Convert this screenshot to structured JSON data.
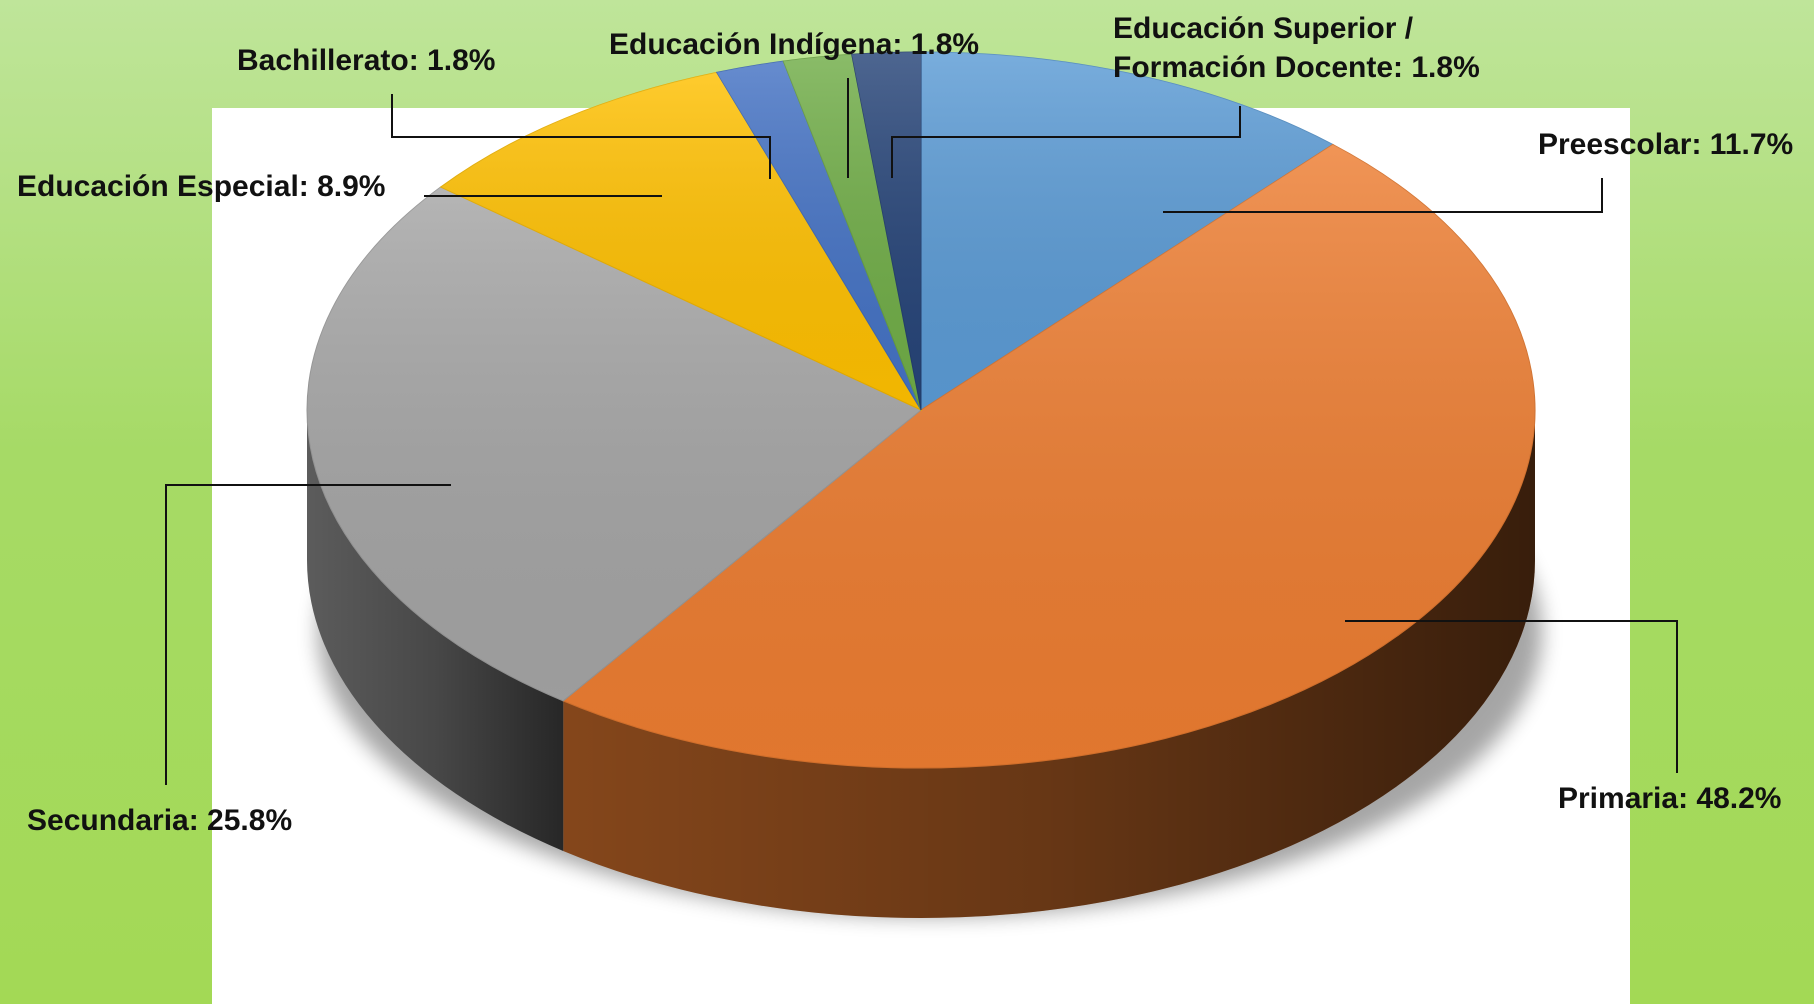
{
  "chart_data": {
    "type": "pie",
    "style": "3d-exploded-depth",
    "title": "",
    "unit": "%",
    "slices": [
      {
        "name": "Preescolar",
        "value": 11.7,
        "label": "Preescolar: 11.7%",
        "color": "#5b9bd5"
      },
      {
        "name": "Primaria",
        "value": 48.2,
        "label": "Primaria: 48.2%",
        "color": "#ed7d31"
      },
      {
        "name": "Secundaria",
        "value": 25.8,
        "label": "Secundaria: 25.8%",
        "color": "#a5a5a5"
      },
      {
        "name": "Educación Especial",
        "value": 8.9,
        "label": "Educación Especial: 8.9%",
        "color": "#ffc000"
      },
      {
        "name": "Bachillerato",
        "value": 1.8,
        "label": "Bachillerato: 1.8%",
        "color": "#4472c4"
      },
      {
        "name": "Educación Indígena",
        "value": 1.8,
        "label": "Educación Indígena: 1.8%",
        "color": "#70ad47"
      },
      {
        "name": "Educación Superior / Formación Docente",
        "value": 1.8,
        "label_lines": [
          "Educación Superior /",
          "Formación Docente:  1.8%"
        ],
        "color": "#264478"
      }
    ],
    "legend": "none",
    "data_labels": "outside-with-leader-lines"
  }
}
